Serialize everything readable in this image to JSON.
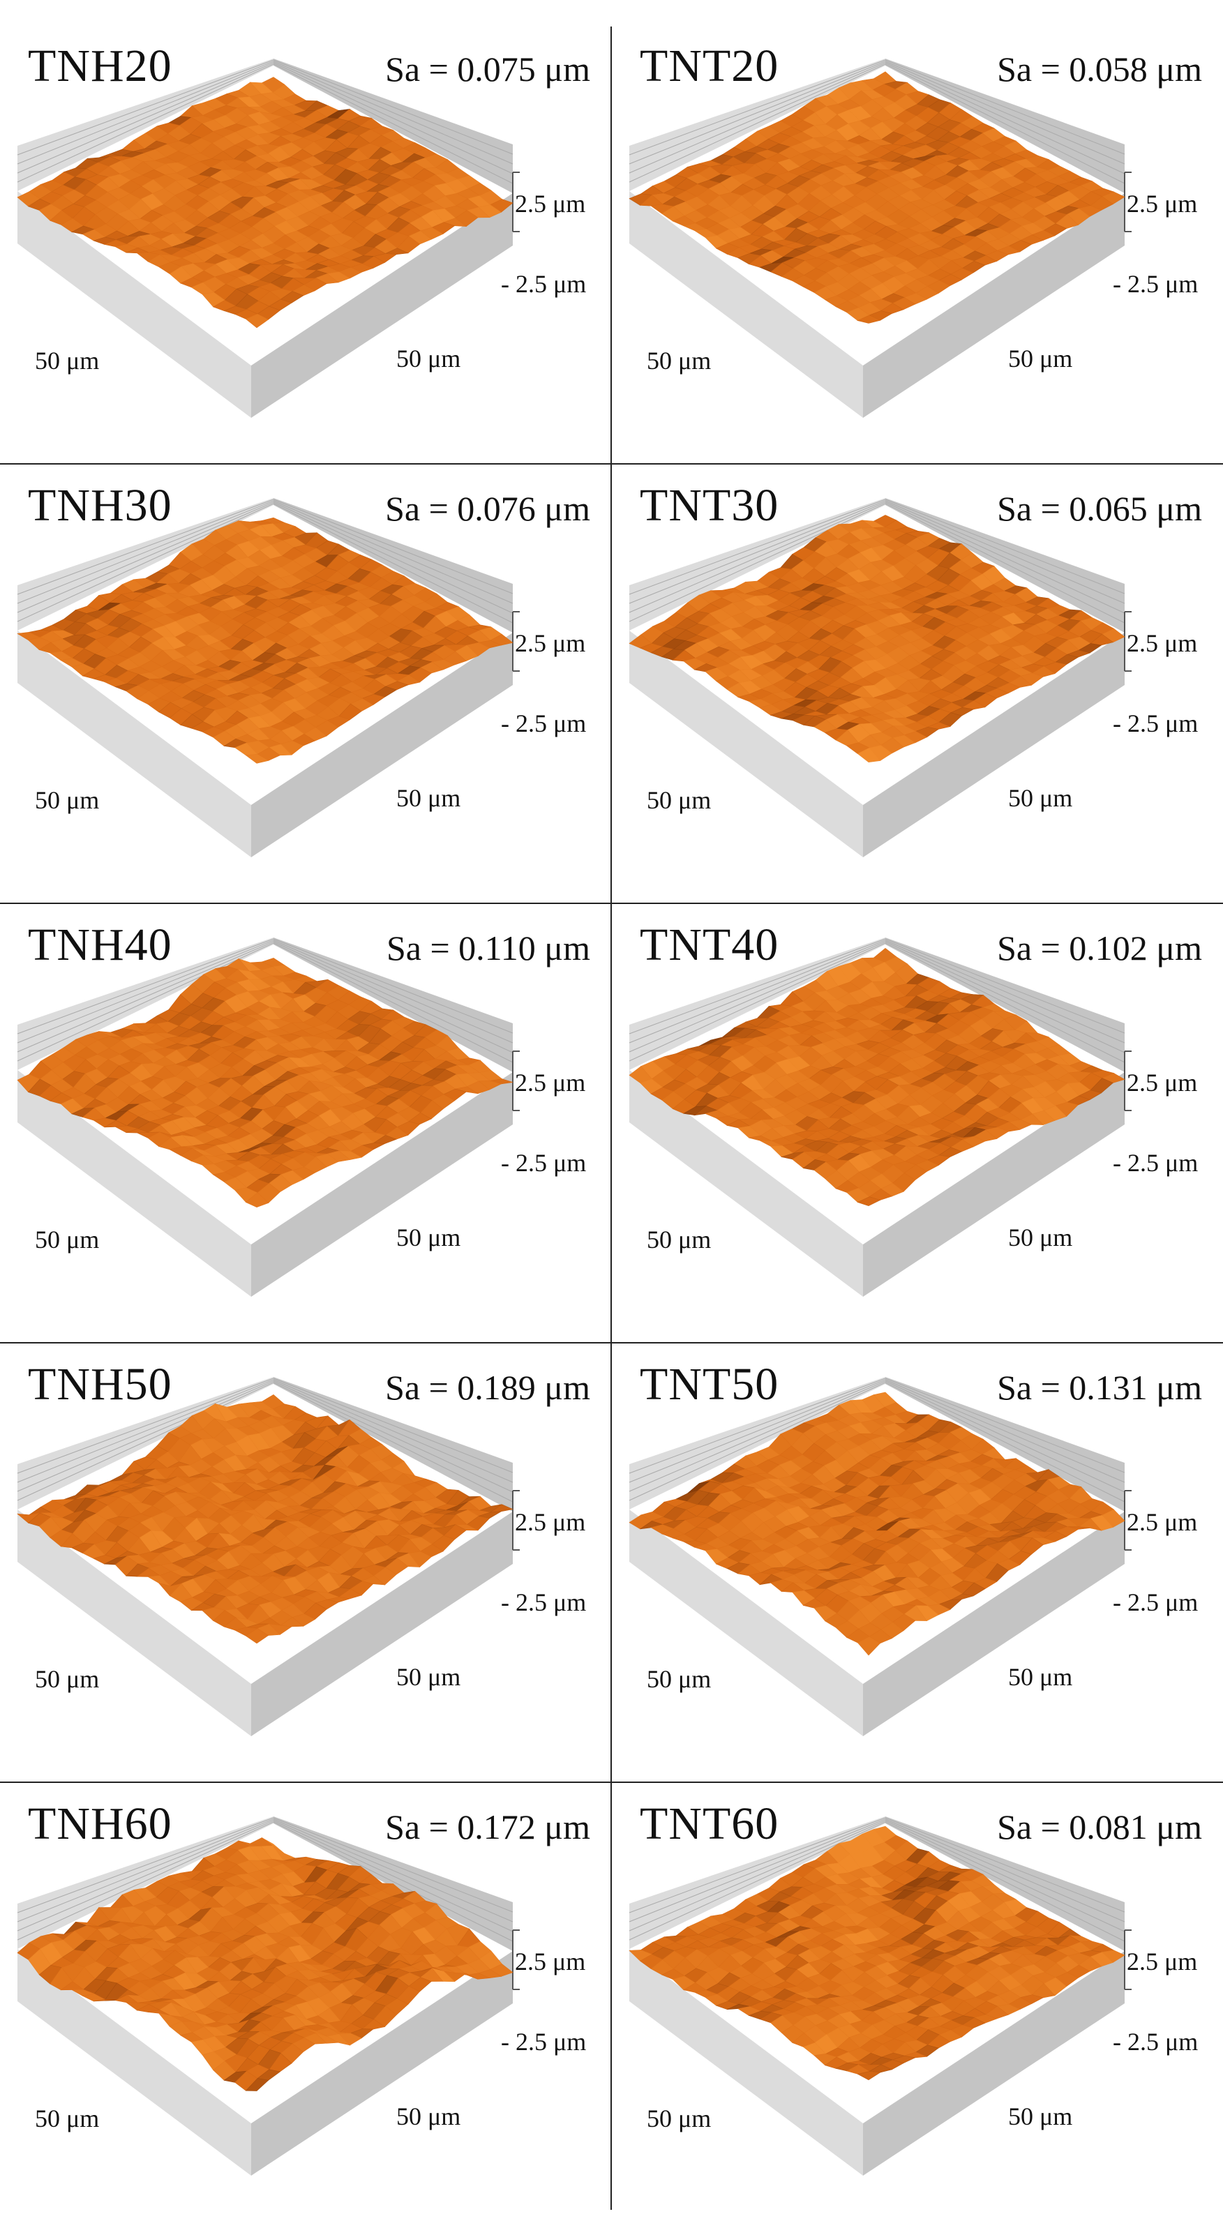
{
  "panels": [
    {
      "name": "TNH20",
      "sa": "Sa = 0.075 μm",
      "x_label": "50 μm",
      "y_label": "50 μm",
      "z_top": "2.5 μm",
      "z_bottom": "- 2.5 μm",
      "roughness": 0.075
    },
    {
      "name": "TNT20",
      "sa": "Sa = 0.058 μm",
      "x_label": "50 μm",
      "y_label": "50 μm",
      "z_top": "2.5 μm",
      "z_bottom": "- 2.5 μm",
      "roughness": 0.058
    },
    {
      "name": "TNH30",
      "sa": "Sa = 0.076 μm",
      "x_label": "50 μm",
      "y_label": "50 μm",
      "z_top": "2.5 μm",
      "z_bottom": "- 2.5 μm",
      "roughness": 0.076
    },
    {
      "name": "TNT30",
      "sa": "Sa = 0.065 μm",
      "x_label": "50 μm",
      "y_label": "50 μm",
      "z_top": "2.5 μm",
      "z_bottom": "- 2.5 μm",
      "roughness": 0.065
    },
    {
      "name": "TNH40",
      "sa": "Sa = 0.110 μm",
      "x_label": "50 μm",
      "y_label": "50 μm",
      "z_top": "2.5 μm",
      "z_bottom": "- 2.5 μm",
      "roughness": 0.11
    },
    {
      "name": "TNT40",
      "sa": "Sa = 0.102 μm",
      "x_label": "50 μm",
      "y_label": "50 μm",
      "z_top": "2.5 μm",
      "z_bottom": "- 2.5 μm",
      "roughness": 0.102
    },
    {
      "name": "TNH50",
      "sa": "Sa = 0.189 μm",
      "x_label": "50 μm",
      "y_label": "50 μm",
      "z_top": "2.5 μm",
      "z_bottom": "- 2.5 μm",
      "roughness": 0.189
    },
    {
      "name": "TNT50",
      "sa": "Sa = 0.131 μm",
      "x_label": "50 μm",
      "y_label": "50 μm",
      "z_top": "2.5 μm",
      "z_bottom": "- 2.5 μm",
      "roughness": 0.131
    },
    {
      "name": "TNH60",
      "sa": "Sa = 0.172 μm",
      "x_label": "50 μm",
      "y_label": "50 μm",
      "z_top": "2.5 μm",
      "z_bottom": "- 2.5 μm",
      "roughness": 0.172
    },
    {
      "name": "TNT60",
      "sa": "Sa = 0.081 μm",
      "x_label": "50 μm",
      "y_label": "50 μm",
      "z_top": "2.5 μm",
      "z_bottom": "- 2.5 μm",
      "roughness": 0.081
    }
  ],
  "colors": {
    "surface_light": "#f08a2a",
    "surface_mid": "#d96a14",
    "surface_dark": "#6b2d05",
    "box_wall": "#dcdcdc",
    "box_wall_dark": "#c4c4c4",
    "grid_line": "#aaaaaa"
  }
}
